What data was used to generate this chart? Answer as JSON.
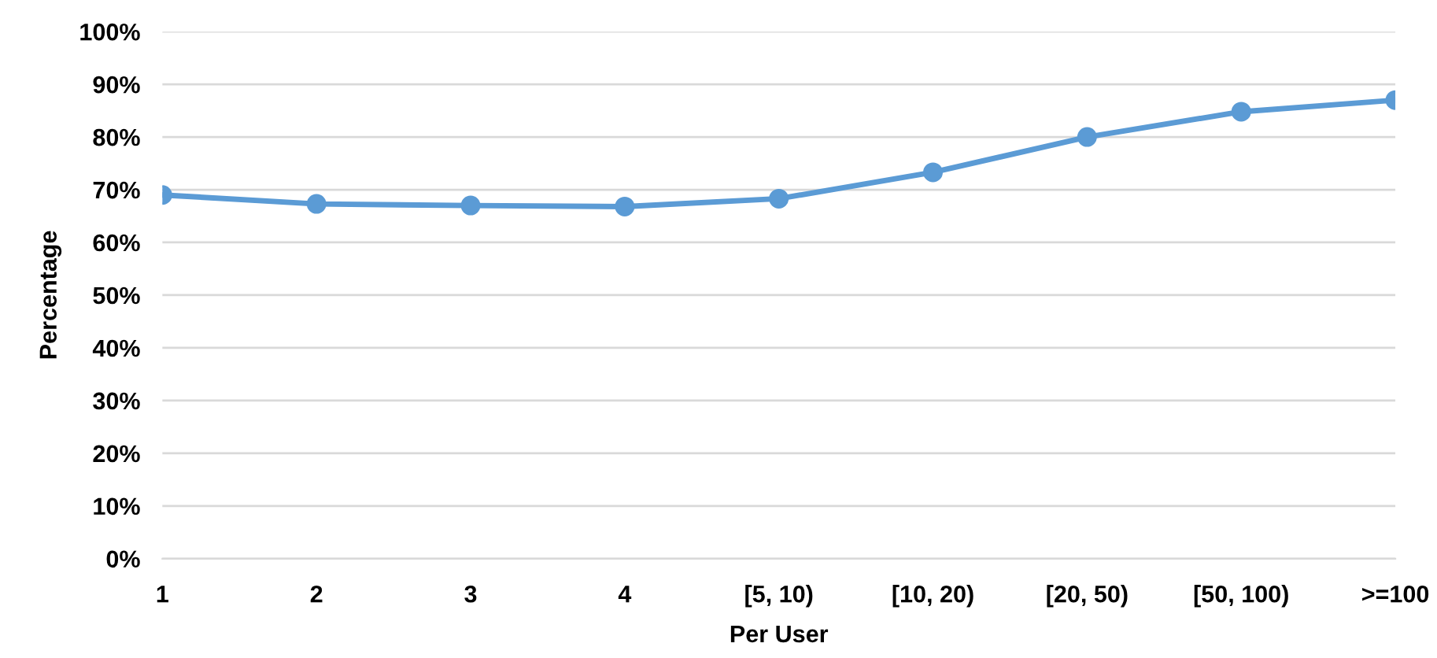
{
  "chart_data": {
    "type": "line",
    "xlabel": "Per User",
    "ylabel": "Percentage",
    "categories": [
      "1",
      "2",
      "3",
      "4",
      "[5, 10)",
      "[10, 20)",
      "[20, 50)",
      "[50, 100)",
      ">=100"
    ],
    "series": [
      {
        "color": "#5b9bd5",
        "values": [
          69,
          67.3,
          67,
          66.8,
          68.3,
          73.3,
          80,
          84.8,
          87
        ]
      }
    ],
    "ylim": [
      0,
      100
    ],
    "yticks": [
      {
        "value": 0,
        "label": "0%"
      },
      {
        "value": 10,
        "label": "10%"
      },
      {
        "value": 20,
        "label": "20%"
      },
      {
        "value": 30,
        "label": "30%"
      },
      {
        "value": 40,
        "label": "40%"
      },
      {
        "value": 50,
        "label": "50%"
      },
      {
        "value": 60,
        "label": "60%"
      },
      {
        "value": 70,
        "label": "70%"
      },
      {
        "value": 80,
        "label": "80%"
      },
      {
        "value": 90,
        "label": "90%"
      },
      {
        "value": 100,
        "label": "100%"
      }
    ],
    "grid": "y",
    "marker": "circle",
    "line_style": "solid"
  }
}
